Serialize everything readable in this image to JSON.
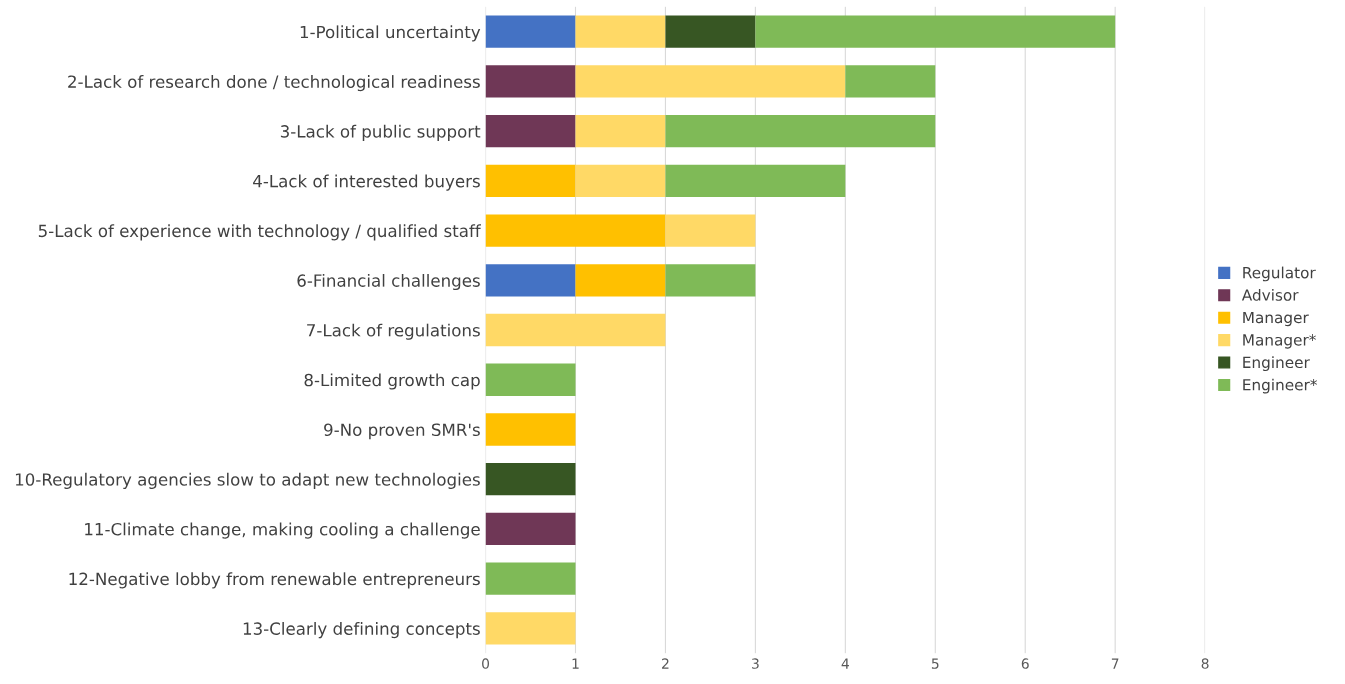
{
  "chart_data": {
    "type": "bar",
    "orientation": "horizontal",
    "stacked": true,
    "categories": [
      "1-Political uncertainty",
      "2-Lack of research done / technological readiness",
      "3-Lack of public support",
      "4-Lack of interested buyers",
      "5-Lack of experience with technology / qualified staff",
      "6-Financial challenges",
      "7-Lack of regulations",
      "8-Limited growth cap",
      "9-No proven SMR's",
      "10-Regulatory agencies slow to adapt new technologies",
      "11-Climate change, making cooling a challenge",
      "12-Negative lobby from renewable entrepreneurs",
      "13-Clearly defining concepts"
    ],
    "series": [
      {
        "name": "Regulator",
        "color": "#4472c4",
        "values": [
          1,
          null,
          null,
          null,
          null,
          1,
          null,
          null,
          null,
          null,
          null,
          null,
          null
        ]
      },
      {
        "name": "Advisor",
        "color": "#6f3756",
        "values": [
          null,
          1,
          1,
          null,
          null,
          null,
          null,
          null,
          null,
          null,
          1,
          null,
          null
        ]
      },
      {
        "name": "Manager",
        "color": "#ffc000",
        "values": [
          null,
          null,
          null,
          1,
          2,
          1,
          null,
          null,
          1,
          null,
          null,
          null,
          null
        ]
      },
      {
        "name": "Manager*",
        "color": "#ffd966",
        "values": [
          1,
          3,
          1,
          1,
          1,
          null,
          2,
          null,
          null,
          null,
          null,
          null,
          1
        ]
      },
      {
        "name": "Engineer",
        "color": "#375623",
        "values": [
          1,
          null,
          null,
          null,
          null,
          null,
          null,
          null,
          null,
          1,
          null,
          null,
          null
        ]
      },
      {
        "name": "Engineer*",
        "color": "#7fba57",
        "values": [
          4,
          1,
          3,
          2,
          null,
          1,
          null,
          1,
          null,
          null,
          null,
          1,
          null
        ]
      }
    ],
    "xlim": [
      0,
      8
    ],
    "xticks": [
      0,
      1,
      2,
      3,
      4,
      5,
      6,
      7,
      8
    ],
    "grid": "x",
    "legend": "right"
  }
}
